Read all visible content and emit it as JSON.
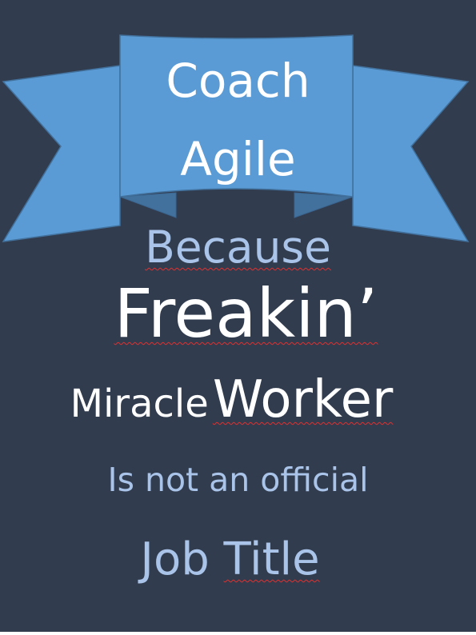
{
  "poster": {
    "ribbon_line1": "Coach",
    "ribbon_line2": "Agile",
    "line_because": "Because",
    "line_freakin": "Freakin’",
    "line_miracle": "Miracle",
    "line_worker": "Worker",
    "line_official": "Is not an official",
    "line_job_title": "Job Title"
  },
  "colors": {
    "background": "#323c4f",
    "ribbon_light": "#5b9bd5",
    "ribbon_dark": "#41719c",
    "text_white": "#ffffff",
    "text_light_blue": "#a9c4e8",
    "spellcheck_underline": "#e0302d"
  }
}
